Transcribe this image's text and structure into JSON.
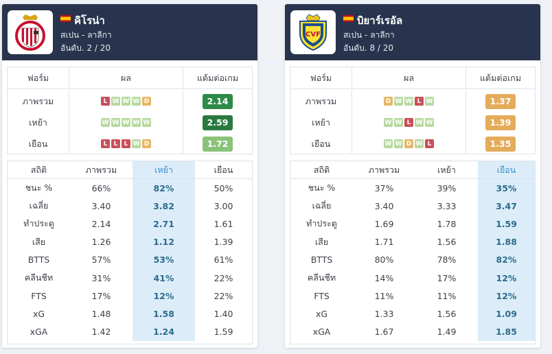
{
  "left": {
    "team_name": "คิโรน่า",
    "league": "สเปน - ลาลีกา",
    "rank": "อันดับ. 2 / 20",
    "form_headers": [
      "ฟอร์ม",
      "ผล",
      "แต้มต่อเกม"
    ],
    "form_rows": [
      {
        "label": "ภาพรวม",
        "results": [
          "L",
          "W",
          "W",
          "W",
          "D"
        ],
        "ppg": "2.14",
        "ppg_color": "#2e8b47"
      },
      {
        "label": "เหย้า",
        "results": [
          "W",
          "W",
          "W",
          "W",
          "W"
        ],
        "ppg": "2.59",
        "ppg_color": "#2a7a40"
      },
      {
        "label": "เยือน",
        "results": [
          "L",
          "L",
          "L",
          "W",
          "D"
        ],
        "ppg": "1.72",
        "ppg_color": "#8bc27a"
      }
    ],
    "stats_headers": [
      "สถิติ",
      "ภาพรวม",
      "เหย้า",
      "เยือน"
    ],
    "highlight_col": 2,
    "stats_rows": [
      [
        "ชนะ %",
        "66%",
        "82%",
        "50%"
      ],
      [
        "เฉลี่ย",
        "3.40",
        "3.82",
        "3.00"
      ],
      [
        "ทำประตู",
        "2.14",
        "2.71",
        "1.61"
      ],
      [
        "เสีย",
        "1.26",
        "1.12",
        "1.39"
      ],
      [
        "BTTS",
        "57%",
        "53%",
        "61%"
      ],
      [
        "คลีนชีท",
        "31%",
        "41%",
        "22%"
      ],
      [
        "FTS",
        "17%",
        "12%",
        "22%"
      ],
      [
        "xG",
        "1.48",
        "1.58",
        "1.40"
      ],
      [
        "xGA",
        "1.42",
        "1.24",
        "1.59"
      ]
    ]
  },
  "right": {
    "team_name": "บิยาร์เรอัล",
    "league": "สเปน - ลาลีกา",
    "rank": "อันดับ. 8 / 20",
    "form_headers": [
      "ฟอร์ม",
      "ผล",
      "แต้มต่อเกม"
    ],
    "form_rows": [
      {
        "label": "ภาพรวม",
        "results": [
          "D",
          "W",
          "W",
          "L",
          "W"
        ],
        "ppg": "1.37",
        "ppg_color": "#e4ac5a"
      },
      {
        "label": "เหย้า",
        "results": [
          "W",
          "W",
          "L",
          "W",
          "W"
        ],
        "ppg": "1.39",
        "ppg_color": "#e4ac5a"
      },
      {
        "label": "เยือน",
        "results": [
          "W",
          "W",
          "D",
          "W",
          "L"
        ],
        "ppg": "1.35",
        "ppg_color": "#e4ac5a"
      }
    ],
    "stats_headers": [
      "สถิติ",
      "ภาพรวม",
      "เหย้า",
      "เยือน"
    ],
    "highlight_col": 3,
    "stats_rows": [
      [
        "ชนะ %",
        "37%",
        "39%",
        "35%"
      ],
      [
        "เฉลี่ย",
        "3.40",
        "3.33",
        "3.47"
      ],
      [
        "ทำประตู",
        "1.69",
        "1.78",
        "1.59"
      ],
      [
        "เสีย",
        "1.71",
        "1.56",
        "1.88"
      ],
      [
        "BTTS",
        "80%",
        "78%",
        "82%"
      ],
      [
        "คลีนชีท",
        "14%",
        "17%",
        "12%"
      ],
      [
        "FTS",
        "11%",
        "11%",
        "12%"
      ],
      [
        "xG",
        "1.33",
        "1.56",
        "1.09"
      ],
      [
        "xGA",
        "1.67",
        "1.49",
        "1.85"
      ]
    ]
  },
  "icons": {
    "left_crest": "girona-crest-icon",
    "right_crest": "villarreal-crest-icon",
    "flag": "spain-flag-icon"
  },
  "colors": {
    "header_bg": "#28344d",
    "win": "#b8d9a0",
    "draw": "#e7b765",
    "loss": "#c7505a",
    "highlight_bg": "#dcedf9"
  }
}
